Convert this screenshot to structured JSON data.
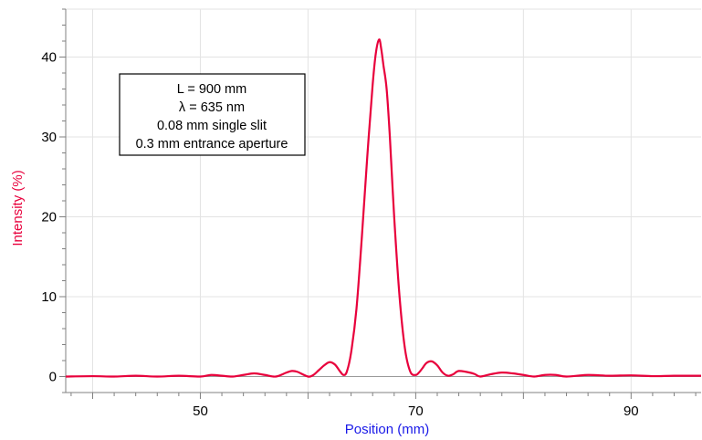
{
  "chart_data": {
    "type": "line",
    "xlabel": "Position (mm)",
    "ylabel": "Intensity (%)",
    "xlim": [
      37.5,
      96.5
    ],
    "ylim": [
      -2,
      46
    ],
    "x_ticks": [
      50,
      70,
      90
    ],
    "y_ticks": [
      0,
      10,
      20,
      30,
      40
    ],
    "grid": true,
    "annotation": [
      "L = 900 mm",
      "λ = 635 nm",
      "0.08 mm single slit",
      "0.3 mm entrance aperture"
    ],
    "series": [
      {
        "color": "#e8003c",
        "x": [
          37.5,
          40,
          42,
          44,
          46,
          48,
          50,
          51,
          52,
          53,
          54,
          55,
          56,
          57,
          58,
          58.5,
          59,
          60,
          60.5,
          61,
          61.5,
          62,
          62.5,
          63,
          63.3,
          63.6,
          64,
          64.5,
          65,
          65.5,
          66,
          66.3,
          66.6,
          66.8,
          67,
          67.3,
          67.6,
          68,
          68.5,
          69,
          69.5,
          70,
          70.3,
          70.6,
          71,
          71.5,
          72,
          72.5,
          73,
          73.5,
          74,
          75,
          75.5,
          76,
          77,
          78,
          79,
          80,
          81,
          82,
          83,
          84,
          86,
          88,
          90,
          92,
          94,
          96.5
        ],
        "y": [
          0.0,
          0.05,
          0.0,
          0.1,
          0.0,
          0.1,
          0.0,
          0.2,
          0.1,
          0.0,
          0.2,
          0.4,
          0.2,
          0.0,
          0.5,
          0.7,
          0.6,
          0.0,
          0.2,
          0.8,
          1.4,
          1.8,
          1.5,
          0.6,
          0.2,
          0.6,
          3.0,
          8.5,
          17.5,
          27.5,
          36.5,
          40.5,
          42.2,
          41.0,
          39.0,
          36.0,
          30.0,
          20.0,
          10.0,
          3.5,
          0.6,
          0.2,
          0.5,
          1.0,
          1.7,
          1.9,
          1.4,
          0.5,
          0.1,
          0.3,
          0.7,
          0.5,
          0.3,
          0.0,
          0.3,
          0.5,
          0.4,
          0.2,
          0.0,
          0.2,
          0.2,
          0.0,
          0.2,
          0.1,
          0.15,
          0.05,
          0.1,
          0.1
        ]
      }
    ]
  }
}
